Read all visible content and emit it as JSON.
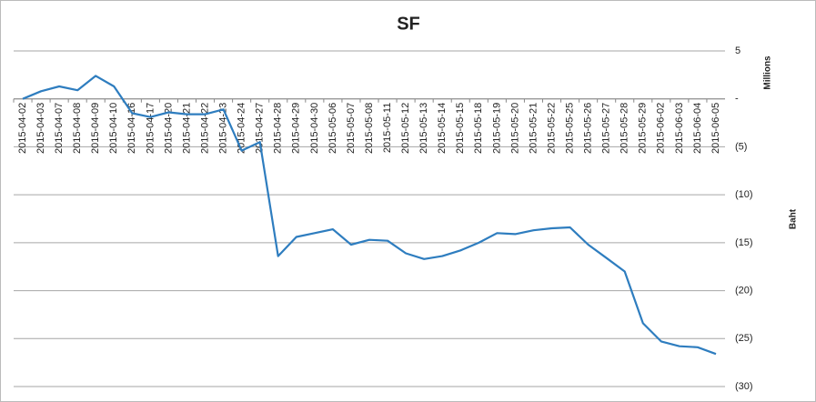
{
  "chart_data": {
    "type": "line",
    "title": "SF",
    "y_axis_label": "Baht",
    "y_axis_unit_label": "Millions",
    "categories": [
      "2015-04-02",
      "2015-04-03",
      "2015-04-07",
      "2015-04-08",
      "2015-04-09",
      "2015-04-10",
      "2015-04-16",
      "2015-04-17",
      "2015-04-20",
      "2015-04-21",
      "2015-04-22",
      "2015-04-23",
      "2015-04-24",
      "2015-04-27",
      "2015-04-28",
      "2015-04-29",
      "2015-04-30",
      "2015-05-06",
      "2015-05-07",
      "2015-05-08",
      "2015-05-11",
      "2015-05-12",
      "2015-05-13",
      "2015-05-14",
      "2015-05-15",
      "2015-05-18",
      "2015-05-19",
      "2015-05-20",
      "2015-05-21",
      "2015-05-22",
      "2015-05-25",
      "2015-05-26",
      "2015-05-27",
      "2015-05-28",
      "2015-05-29",
      "2015-06-02",
      "2015-06-03",
      "2015-06-04",
      "2015-06-05"
    ],
    "values": [
      0,
      0.8,
      1.3,
      0.9,
      2.4,
      1.3,
      -1.5,
      -1.9,
      -1.4,
      -1.6,
      -1.6,
      -1.1,
      -5.4,
      -4.5,
      -16.4,
      -14.4,
      -14.0,
      -13.6,
      -15.2,
      -14.7,
      -14.8,
      -16.1,
      -16.7,
      -16.4,
      -15.8,
      -15.0,
      -14.0,
      -14.1,
      -13.7,
      -13.5,
      -13.4,
      -15.2,
      -16.6,
      -18.0,
      -23.4,
      -25.3,
      -25.8,
      -25.9,
      -26.6
    ],
    "color": "#2e7dbf",
    "ylim": [
      -30,
      5
    ],
    "yticks": [
      5,
      {
        "value": 0,
        "label": "-"
      },
      {
        "value": -5,
        "label": "(5)"
      },
      {
        "value": -10,
        "label": "(10)"
      },
      {
        "value": -15,
        "label": "(15)"
      },
      {
        "value": -20,
        "label": "(20)"
      },
      {
        "value": -25,
        "label": "(25)"
      },
      {
        "value": -30,
        "label": "(30)"
      }
    ],
    "grid": true
  }
}
